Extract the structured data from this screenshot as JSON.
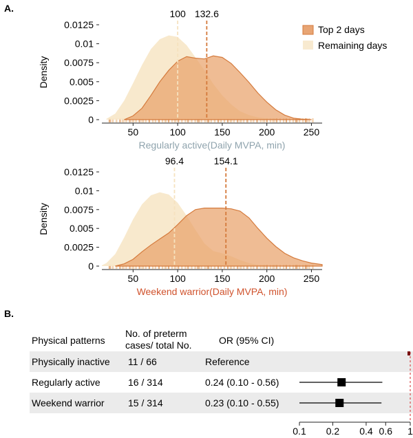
{
  "panel_a_label": "A.",
  "panel_b_label": "B.",
  "legend": {
    "top2": "Top 2 days",
    "remaining": "Remaining days",
    "top2_color": "#e8a574",
    "remaining_color": "#f8ead0"
  },
  "colors": {
    "top2_fill": "#e9a26b",
    "top2_stroke": "#d47a3c",
    "remaining_fill": "#f7e7c8",
    "regular_label": "#8fa3ad",
    "warrior_label": "#d0522c",
    "grid_band": "#ebebeb",
    "ref_line": "#d94a4a"
  },
  "chart_data": [
    {
      "type": "area",
      "name": "density-regularly-active",
      "ylabel": "Density",
      "xlabel_group": "Regularly active",
      "xlabel_unit": "(Daily MVPA, min)",
      "xlim": [
        15,
        262
      ],
      "ylim": [
        0,
        0.0125
      ],
      "xticks": [
        50,
        100,
        150,
        200,
        250
      ],
      "yticks": [
        0,
        0.0025,
        0.005,
        0.0075,
        0.01,
        0.0125
      ],
      "ytick_labels": [
        "0",
        "0.0025",
        "0.005",
        "0.0075",
        "0.01",
        "0.0125"
      ],
      "median_remaining": 100,
      "median_top2": 132.6,
      "median_remaining_label": "100",
      "median_top2_label": "132.6",
      "series": [
        {
          "key": "remaining",
          "x": [
            20,
            30,
            40,
            50,
            60,
            70,
            80,
            90,
            100,
            110,
            120,
            130,
            140,
            150,
            160,
            170,
            180,
            190,
            200,
            210,
            220,
            230,
            240
          ],
          "y": [
            0.0001,
            0.0008,
            0.0025,
            0.0048,
            0.0072,
            0.0093,
            0.0106,
            0.0111,
            0.0109,
            0.0098,
            0.0082,
            0.0065,
            0.0047,
            0.0032,
            0.002,
            0.0011,
            0.0006,
            0.0003,
            0.00015,
            8e-05,
            4e-05,
            2e-05,
            0
          ]
        },
        {
          "key": "top2",
          "x": [
            40,
            50,
            60,
            70,
            80,
            90,
            100,
            110,
            120,
            130,
            140,
            150,
            160,
            170,
            180,
            190,
            200,
            210,
            220,
            230,
            240,
            250
          ],
          "y": [
            0,
            0.0005,
            0.0015,
            0.0032,
            0.005,
            0.0065,
            0.0077,
            0.0083,
            0.0081,
            0.008,
            0.0084,
            0.0082,
            0.0074,
            0.0062,
            0.0049,
            0.0035,
            0.0023,
            0.0013,
            0.0006,
            0.0002,
            5e-05,
            0
          ]
        }
      ]
    },
    {
      "type": "area",
      "name": "density-weekend-warrior",
      "ylabel": "Density",
      "xlabel_group": "Weekend warrior",
      "xlabel_unit": "(Daily MVPA, min)",
      "xlim": [
        15,
        262
      ],
      "ylim": [
        0,
        0.0125
      ],
      "xticks": [
        50,
        100,
        150,
        200,
        250
      ],
      "yticks": [
        0,
        0.0025,
        0.005,
        0.0075,
        0.01,
        0.0125
      ],
      "ytick_labels": [
        "0",
        "0.0025",
        "0.005",
        "0.0075",
        "0.01",
        "0.0125"
      ],
      "median_remaining": 96.4,
      "median_top2": 154.1,
      "median_remaining_label": "96.4",
      "median_top2_label": "154.1",
      "series": [
        {
          "key": "remaining",
          "x": [
            15,
            20,
            30,
            40,
            50,
            60,
            70,
            80,
            90,
            100,
            110,
            120,
            130,
            140,
            150,
            160,
            170,
            180,
            190,
            200,
            210
          ],
          "y": [
            0.0001,
            0.0004,
            0.0016,
            0.0038,
            0.0062,
            0.0082,
            0.0094,
            0.0098,
            0.0095,
            0.0084,
            0.0067,
            0.0048,
            0.003,
            0.002,
            0.0017,
            0.0013,
            0.0008,
            0.0004,
            0.00015,
            5e-05,
            0
          ]
        },
        {
          "key": "top2",
          "x": [
            30,
            40,
            50,
            60,
            70,
            80,
            90,
            100,
            110,
            120,
            130,
            140,
            150,
            160,
            170,
            180,
            190,
            200,
            210,
            220,
            230,
            240,
            250,
            262
          ],
          "y": [
            0,
            0.0003,
            0.0009,
            0.0019,
            0.0028,
            0.0036,
            0.0044,
            0.0055,
            0.0067,
            0.0075,
            0.0077,
            0.0077,
            0.0077,
            0.0076,
            0.0073,
            0.0064,
            0.005,
            0.0037,
            0.0026,
            0.0017,
            0.0011,
            0.0007,
            0.0004,
            0.0002
          ]
        }
      ]
    },
    {
      "type": "forest",
      "name": "forest-plot",
      "xscale": "log",
      "xlim": [
        0.1,
        1
      ],
      "xticks": [
        0.1,
        0.2,
        0.4,
        0.6,
        1
      ],
      "xtick_labels": [
        "0.1",
        "0.2",
        "0.4",
        "0.6",
        "1"
      ],
      "reference_value": 1,
      "headers": {
        "pattern": "Physical patterns",
        "cases_line1": "No. of preterm",
        "cases_line2": "cases/ total No.",
        "or": "OR (95% CI)"
      },
      "rows": [
        {
          "pattern": "Physically inactive",
          "cases": "11 / 66",
          "or_text": "Reference",
          "or": 1,
          "lo": 1,
          "hi": 1,
          "shaded": true
        },
        {
          "pattern": "Regularly active",
          "cases": "16 / 314",
          "or_text": "0.24 (0.10 - 0.56)",
          "or": 0.24,
          "lo": 0.1,
          "hi": 0.56,
          "shaded": false
        },
        {
          "pattern": "Weekend warrior",
          "cases": "15 / 314",
          "or_text": "0.23 (0.10 - 0.55)",
          "or": 0.23,
          "lo": 0.1,
          "hi": 0.55,
          "shaded": true
        }
      ]
    }
  ]
}
